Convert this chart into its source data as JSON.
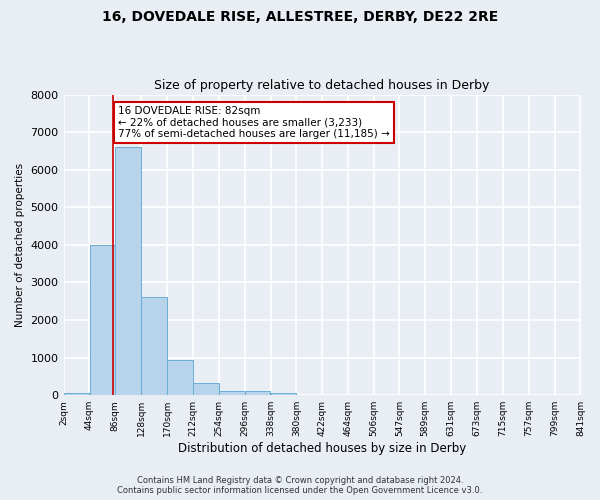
{
  "title1": "16, DOVEDALE RISE, ALLESTREE, DERBY, DE22 2RE",
  "title2": "Size of property relative to detached houses in Derby",
  "xlabel": "Distribution of detached houses by size in Derby",
  "ylabel": "Number of detached properties",
  "bar_color": "#b8d4ea",
  "bar_edge_color": "#6aaed6",
  "background_color": "#e8eef4",
  "grid_color": "#ffffff",
  "bin_edges": [
    2,
    44,
    86,
    128,
    170,
    212,
    254,
    296,
    338,
    380,
    422,
    464,
    506,
    547,
    589,
    631,
    673,
    715,
    757,
    799,
    841
  ],
  "bar_heights": [
    55,
    4000,
    6600,
    2600,
    950,
    320,
    120,
    115,
    55,
    0,
    0,
    0,
    0,
    0,
    0,
    0,
    0,
    0,
    0,
    0
  ],
  "tick_labels": [
    "2sqm",
    "44sqm",
    "86sqm",
    "128sqm",
    "170sqm",
    "212sqm",
    "254sqm",
    "296sqm",
    "338sqm",
    "380sqm",
    "422sqm",
    "464sqm",
    "506sqm",
    "547sqm",
    "589sqm",
    "631sqm",
    "673sqm",
    "715sqm",
    "757sqm",
    "799sqm",
    "841sqm"
  ],
  "vline_x": 82,
  "vline_color": "#cc0000",
  "annotation_text": "16 DOVEDALE RISE: 82sqm\n← 22% of detached houses are smaller (3,233)\n77% of semi-detached houses are larger (11,185) →",
  "annotation_box_color": "#ffffff",
  "annotation_box_edge": "#cc0000",
  "ylim": [
    0,
    8000
  ],
  "yticks": [
    0,
    1000,
    2000,
    3000,
    4000,
    5000,
    6000,
    7000,
    8000
  ],
  "footer1": "Contains HM Land Registry data © Crown copyright and database right 2024.",
  "footer2": "Contains public sector information licensed under the Open Government Licence v3.0."
}
